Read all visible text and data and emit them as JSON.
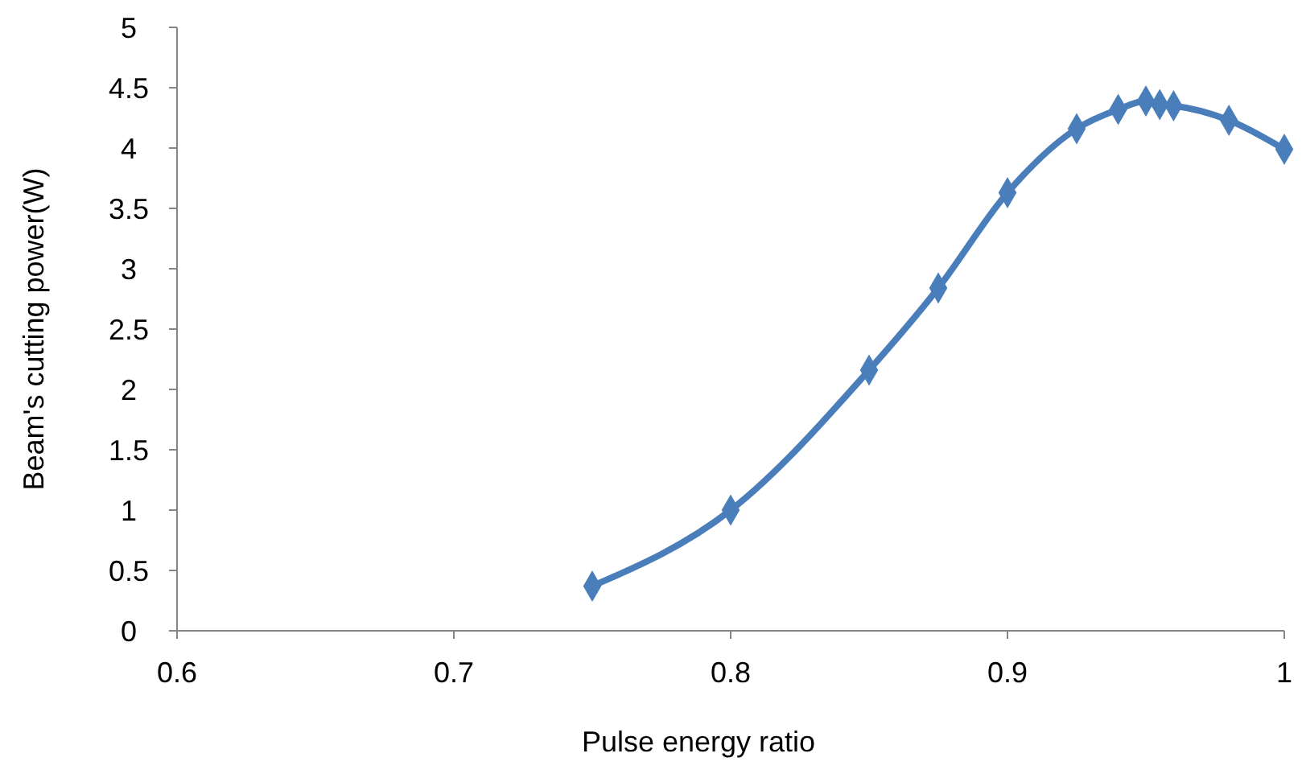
{
  "chart_data": {
    "type": "line",
    "xlabel": "Pulse energy ratio",
    "ylabel": "Beam's cutting power(W)",
    "x": [
      0.75,
      0.8,
      0.85,
      0.875,
      0.9,
      0.925,
      0.94,
      0.95,
      0.955,
      0.96,
      0.98,
      1.0
    ],
    "series": [
      {
        "color": "#4a7ebb",
        "values": [
          0.37,
          1.0,
          2.16,
          2.84,
          3.63,
          4.16,
          4.32,
          4.39,
          4.36,
          4.35,
          4.23,
          3.99
        ]
      }
    ],
    "xlim": [
      0.6,
      1.0
    ],
    "xticks": [
      0.6,
      0.7,
      0.8,
      0.9,
      1
    ],
    "ylim": [
      0,
      5
    ],
    "yticks": [
      0,
      0.5,
      1,
      1.5,
      2,
      2.5,
      3,
      3.5,
      4,
      4.5,
      5
    ],
    "grid": false,
    "marker": "diamond",
    "line_style": "solid"
  }
}
